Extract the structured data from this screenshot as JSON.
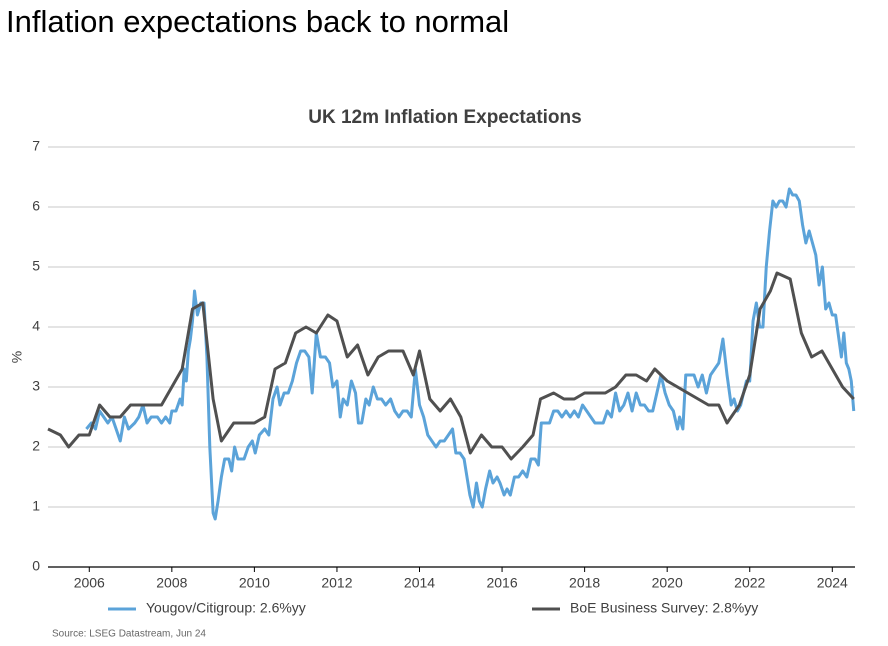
{
  "header": {
    "title": "Inflation expectations back to normal"
  },
  "chart_data": {
    "type": "line",
    "title": "UK 12m Inflation Expectations",
    "y_label": "%",
    "source": "Source: LSEG Datastream, Jun 24",
    "xlim": [
      2005,
      2024.55
    ],
    "xticks": [
      2006,
      2008,
      2010,
      2012,
      2014,
      2016,
      2018,
      2020,
      2022,
      2024
    ],
    "ylim": [
      0,
      7
    ],
    "yticks": [
      0,
      1,
      2,
      3,
      4,
      5,
      6,
      7
    ],
    "grid": true,
    "legend": "bottom",
    "series": [
      {
        "name": "Yougov/Citigroup: 2.6%yy",
        "color": "#5ba3d9",
        "x": [
          2005.93,
          2006.05,
          2006.15,
          2006.25,
          2006.35,
          2006.45,
          2006.55,
          2006.65,
          2006.75,
          2006.85,
          2006.95,
          2007.1,
          2007.2,
          2007.3,
          2007.4,
          2007.5,
          2007.65,
          2007.75,
          2007.85,
          2007.95,
          2008.0,
          2008.1,
          2008.2,
          2008.25,
          2008.3,
          2008.35,
          2008.4,
          2008.45,
          2008.5,
          2008.55,
          2008.62,
          2008.7,
          2008.78,
          2008.85,
          2008.92,
          2009.0,
          2009.05,
          2009.12,
          2009.2,
          2009.28,
          2009.38,
          2009.45,
          2009.52,
          2009.6,
          2009.75,
          2009.85,
          2009.95,
          2010.02,
          2010.12,
          2010.25,
          2010.35,
          2010.45,
          2010.55,
          2010.62,
          2010.72,
          2010.82,
          2010.92,
          2011.02,
          2011.12,
          2011.22,
          2011.32,
          2011.4,
          2011.5,
          2011.6,
          2011.72,
          2011.82,
          2011.9,
          2012.0,
          2012.08,
          2012.15,
          2012.25,
          2012.35,
          2012.45,
          2012.52,
          2012.6,
          2012.7,
          2012.78,
          2012.88,
          2012.98,
          2013.08,
          2013.18,
          2013.3,
          2013.4,
          2013.5,
          2013.6,
          2013.7,
          2013.8,
          2013.9,
          2014.0,
          2014.1,
          2014.2,
          2014.3,
          2014.4,
          2014.5,
          2014.6,
          2014.7,
          2014.8,
          2014.88,
          2014.98,
          2015.08,
          2015.15,
          2015.22,
          2015.3,
          2015.38,
          2015.45,
          2015.52,
          2015.6,
          2015.7,
          2015.78,
          2015.88,
          2015.95,
          2016.05,
          2016.12,
          2016.2,
          2016.3,
          2016.4,
          2016.5,
          2016.6,
          2016.7,
          2016.8,
          2016.88,
          2016.95,
          2017.05,
          2017.15,
          2017.25,
          2017.35,
          2017.45,
          2017.55,
          2017.65,
          2017.75,
          2017.85,
          2017.95,
          2018.05,
          2018.15,
          2018.25,
          2018.35,
          2018.45,
          2018.55,
          2018.65,
          2018.75,
          2018.85,
          2018.95,
          2019.05,
          2019.15,
          2019.25,
          2019.35,
          2019.45,
          2019.55,
          2019.65,
          2019.75,
          2019.85,
          2019.95,
          2020.05,
          2020.15,
          2020.25,
          2020.3,
          2020.38,
          2020.45,
          2020.55,
          2020.65,
          2020.75,
          2020.85,
          2020.95,
          2021.05,
          2021.15,
          2021.25,
          2021.35,
          2021.45,
          2021.55,
          2021.62,
          2021.7,
          2021.78,
          2021.85,
          2021.92,
          2022.0,
          2022.08,
          2022.16,
          2022.24,
          2022.32,
          2022.4,
          2022.48,
          2022.56,
          2022.64,
          2022.72,
          2022.8,
          2022.88,
          2022.96,
          2023.04,
          2023.12,
          2023.2,
          2023.28,
          2023.36,
          2023.44,
          2023.52,
          2023.6,
          2023.68,
          2023.76,
          2023.84,
          2023.92,
          2024.0,
          2024.08,
          2024.16,
          2024.22,
          2024.28,
          2024.34,
          2024.4,
          2024.46,
          2024.52
        ],
        "values": [
          2.3,
          2.4,
          2.3,
          2.6,
          2.5,
          2.4,
          2.5,
          2.3,
          2.1,
          2.5,
          2.3,
          2.4,
          2.5,
          2.7,
          2.4,
          2.5,
          2.5,
          2.4,
          2.5,
          2.4,
          2.6,
          2.6,
          2.8,
          2.7,
          3.3,
          3.1,
          3.6,
          3.8,
          4.1,
          4.6,
          4.2,
          4.4,
          4.4,
          3.5,
          2.0,
          0.9,
          0.8,
          1.1,
          1.5,
          1.8,
          1.8,
          1.6,
          2.0,
          1.8,
          1.8,
          2.0,
          2.1,
          1.9,
          2.2,
          2.3,
          2.2,
          2.8,
          3.0,
          2.7,
          2.9,
          2.9,
          3.1,
          3.4,
          3.6,
          3.6,
          3.5,
          2.9,
          3.9,
          3.5,
          3.5,
          3.4,
          3.0,
          3.1,
          2.5,
          2.8,
          2.7,
          3.1,
          2.9,
          2.4,
          2.4,
          2.8,
          2.7,
          3.0,
          2.8,
          2.8,
          2.7,
          2.8,
          2.6,
          2.5,
          2.6,
          2.6,
          2.5,
          3.3,
          2.7,
          2.5,
          2.2,
          2.1,
          2.0,
          2.1,
          2.1,
          2.2,
          2.3,
          1.9,
          1.9,
          1.8,
          1.5,
          1.2,
          1.0,
          1.4,
          1.1,
          1.0,
          1.3,
          1.6,
          1.4,
          1.5,
          1.4,
          1.2,
          1.3,
          1.2,
          1.5,
          1.5,
          1.6,
          1.5,
          1.8,
          1.8,
          1.7,
          2.4,
          2.4,
          2.4,
          2.6,
          2.6,
          2.5,
          2.6,
          2.5,
          2.6,
          2.5,
          2.7,
          2.6,
          2.5,
          2.4,
          2.4,
          2.4,
          2.6,
          2.5,
          2.9,
          2.6,
          2.7,
          2.9,
          2.6,
          2.9,
          2.7,
          2.7,
          2.6,
          2.6,
          2.9,
          3.2,
          2.9,
          2.7,
          2.6,
          2.3,
          2.5,
          2.3,
          3.2,
          3.2,
          3.2,
          3.0,
          3.2,
          2.9,
          3.2,
          3.3,
          3.4,
          3.8,
          3.2,
          2.7,
          2.8,
          2.6,
          2.7,
          2.9,
          3.1,
          3.1,
          4.1,
          4.4,
          4.0,
          4.0,
          5.0,
          5.6,
          6.1,
          6.0,
          6.1,
          6.1,
          6.0,
          6.3,
          6.2,
          6.2,
          6.1,
          5.7,
          5.4,
          5.6,
          5.4,
          5.2,
          4.7,
          5.0,
          4.3,
          4.4,
          4.2,
          4.2,
          3.8,
          3.5,
          3.9,
          3.4,
          3.3,
          3.1,
          2.6
        ]
      },
      {
        "name": "BoE Business Survey: 2.8%yy",
        "color": "#505050",
        "x": [
          2005.0,
          2005.3,
          2005.5,
          2005.75,
          2006.0,
          2006.25,
          2006.5,
          2006.75,
          2007.0,
          2007.5,
          2007.75,
          2008.0,
          2008.25,
          2008.5,
          2008.75,
          2009.0,
          2009.2,
          2009.5,
          2010.0,
          2010.25,
          2010.5,
          2010.75,
          2011.0,
          2011.25,
          2011.5,
          2011.78,
          2012.0,
          2012.25,
          2012.5,
          2012.75,
          2013.0,
          2013.25,
          2013.6,
          2013.85,
          2014.0,
          2014.25,
          2014.5,
          2014.75,
          2015.0,
          2015.23,
          2015.5,
          2015.75,
          2016.0,
          2016.22,
          2016.5,
          2016.75,
          2016.93,
          2017.25,
          2017.5,
          2017.75,
          2018.0,
          2018.5,
          2018.75,
          2019.0,
          2019.25,
          2019.5,
          2019.7,
          2020.0,
          2020.5,
          2020.75,
          2021.0,
          2021.25,
          2021.45,
          2021.75,
          2022.0,
          2022.25,
          2022.5,
          2022.66,
          2022.98,
          2023.25,
          2023.5,
          2023.75,
          2024.0,
          2024.25,
          2024.52
        ],
        "values": [
          2.3,
          2.2,
          2.0,
          2.2,
          2.2,
          2.7,
          2.5,
          2.5,
          2.7,
          2.7,
          2.7,
          3.0,
          3.3,
          4.3,
          4.4,
          2.8,
          2.1,
          2.4,
          2.4,
          2.5,
          3.3,
          3.4,
          3.9,
          4.0,
          3.9,
          4.2,
          4.1,
          3.5,
          3.7,
          3.2,
          3.5,
          3.6,
          3.6,
          3.2,
          3.6,
          2.8,
          2.6,
          2.8,
          2.5,
          1.9,
          2.2,
          2.0,
          2.0,
          1.8,
          2.0,
          2.2,
          2.8,
          2.9,
          2.8,
          2.8,
          2.9,
          2.9,
          3.0,
          3.2,
          3.2,
          3.1,
          3.3,
          3.1,
          2.9,
          2.8,
          2.7,
          2.7,
          2.4,
          2.7,
          3.2,
          4.3,
          4.6,
          4.9,
          4.8,
          3.9,
          3.5,
          3.6,
          3.3,
          3.0,
          2.8
        ]
      }
    ]
  }
}
